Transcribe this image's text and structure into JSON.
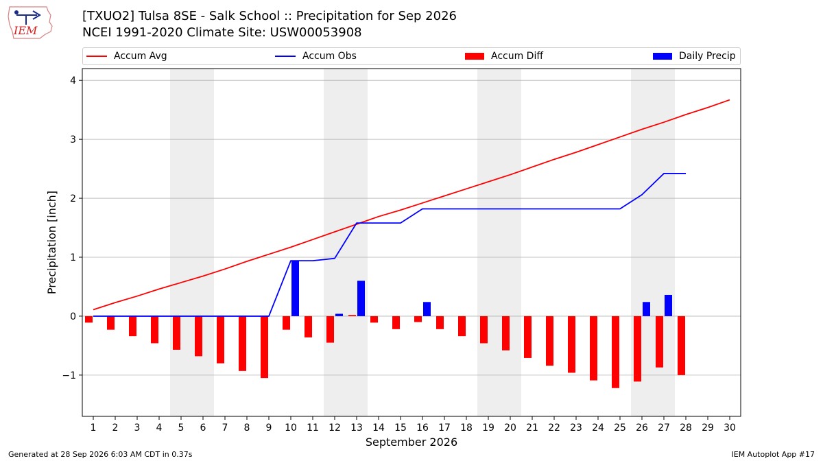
{
  "logo_text": "IEM",
  "title_line1": "[TXUO2] Tulsa 8SE - Salk School :: Precipitation for Sep 2026",
  "title_line2": "NCEI 1991-2020 Climate Site: USW00053908",
  "footer_left": "Generated at 28 Sep 2026 6:03 AM CDT in 0.37s",
  "footer_right": "IEM Autoplot App #17",
  "colors": {
    "avg": "#ff0000",
    "obs": "#0000ff",
    "diff": "#ff0000",
    "daily": "#0000ff",
    "weekend": "#eeeeee",
    "grid": "#b0b0b0"
  },
  "chart_data": {
    "type": "bar",
    "xlabel": "September 2026",
    "ylabel": "Precipitation [inch]",
    "xlim": [
      0.5,
      30.5
    ],
    "ylim": [
      -1.7,
      4.2
    ],
    "xticks": [
      1,
      2,
      3,
      4,
      5,
      6,
      7,
      8,
      9,
      10,
      11,
      12,
      13,
      14,
      15,
      16,
      17,
      18,
      19,
      20,
      21,
      22,
      23,
      24,
      25,
      26,
      27,
      28,
      29,
      30
    ],
    "yticks": [
      -1,
      0,
      1,
      2,
      3,
      4
    ],
    "ytick_labels": [
      "−1",
      "0",
      "1",
      "2",
      "3",
      "4"
    ],
    "grid": "horizontal",
    "legend_position": "top",
    "weekend_shading": [
      [
        4.5,
        6.5
      ],
      [
        11.5,
        13.5
      ],
      [
        18.5,
        20.5
      ],
      [
        25.5,
        27.5
      ]
    ],
    "series": [
      {
        "name": "Accum Avg",
        "type": "line",
        "days": [
          1,
          2,
          3,
          4,
          5,
          6,
          7,
          8,
          9,
          10,
          11,
          12,
          13,
          14,
          15,
          16,
          17,
          18,
          19,
          20,
          21,
          22,
          23,
          24,
          25,
          26,
          27,
          28,
          29,
          30
        ],
        "values": [
          0.11,
          0.23,
          0.34,
          0.46,
          0.57,
          0.68,
          0.8,
          0.93,
          1.05,
          1.17,
          1.3,
          1.43,
          1.56,
          1.69,
          1.8,
          1.92,
          2.04,
          2.16,
          2.28,
          2.4,
          2.53,
          2.66,
          2.78,
          2.91,
          3.04,
          3.17,
          3.29,
          3.42,
          3.54,
          3.67
        ]
      },
      {
        "name": "Accum Obs",
        "type": "line",
        "days": [
          1,
          2,
          3,
          4,
          5,
          6,
          7,
          8,
          9,
          10,
          11,
          12,
          13,
          14,
          15,
          16,
          17,
          18,
          19,
          20,
          21,
          22,
          23,
          24,
          25,
          26,
          27,
          28
        ],
        "values": [
          0,
          0,
          0,
          0,
          0,
          0,
          0,
          0,
          0,
          0.94,
          0.94,
          0.98,
          1.58,
          1.58,
          1.58,
          1.82,
          1.82,
          1.82,
          1.82,
          1.82,
          1.82,
          1.82,
          1.82,
          1.82,
          1.82,
          2.06,
          2.42,
          2.42
        ]
      },
      {
        "name": "Accum Diff",
        "type": "bar",
        "days": [
          1,
          2,
          3,
          4,
          5,
          6,
          7,
          8,
          9,
          10,
          11,
          12,
          13,
          14,
          15,
          16,
          17,
          18,
          19,
          20,
          21,
          22,
          23,
          24,
          25,
          26,
          27,
          28
        ],
        "values": [
          -0.11,
          -0.23,
          -0.34,
          -0.46,
          -0.57,
          -0.68,
          -0.8,
          -0.93,
          -1.05,
          -0.23,
          -0.36,
          -0.45,
          0.02,
          -0.11,
          -0.22,
          -0.1,
          -0.22,
          -0.34,
          -0.46,
          -0.58,
          -0.71,
          -0.84,
          -0.96,
          -1.09,
          -1.22,
          -1.11,
          -0.87,
          -1.0
        ]
      },
      {
        "name": "Daily Precip",
        "type": "bar",
        "days": [
          10,
          12,
          13,
          16,
          26,
          27
        ],
        "values": [
          0.94,
          0.04,
          0.6,
          0.24,
          0.24,
          0.36
        ]
      }
    ]
  }
}
